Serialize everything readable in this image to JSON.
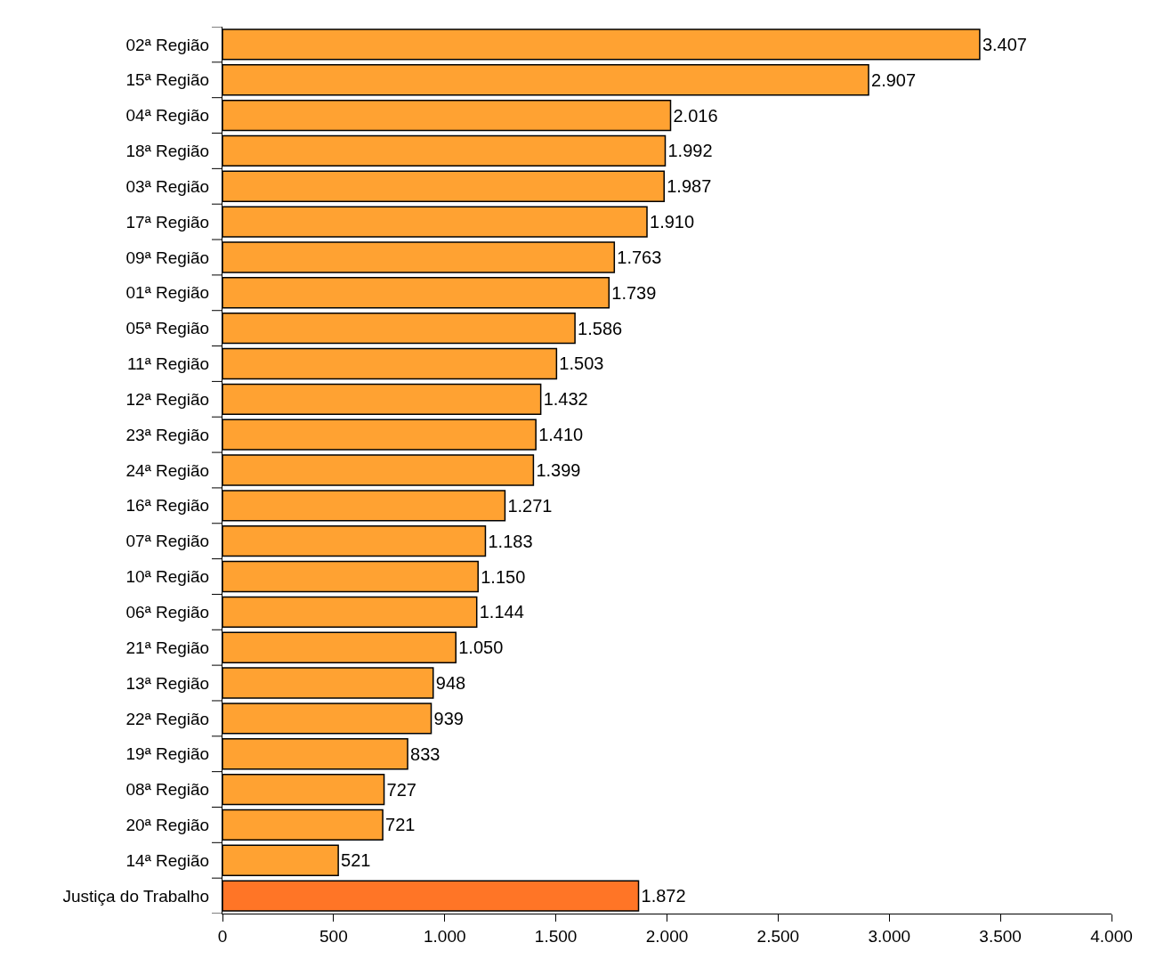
{
  "chart_data": {
    "type": "bar",
    "orientation": "horizontal",
    "categories": [
      "02ª Região",
      "15ª Região",
      "04ª Região",
      "18ª Região",
      "03ª Região",
      "17ª Região",
      "09ª Região",
      "01ª Região",
      "05ª Região",
      "11ª Região",
      "12ª Região",
      "23ª Região",
      "24ª Região",
      "16ª Região",
      "07ª Região",
      "10ª Região",
      "06ª Região",
      "21ª Região",
      "13ª Região",
      "22ª Região",
      "19ª Região",
      "08ª Região",
      "20ª Região",
      "14ª Região",
      "Justiça do Trabalho"
    ],
    "values": [
      3407,
      2907,
      2016,
      1992,
      1987,
      1910,
      1763,
      1739,
      1586,
      1503,
      1432,
      1410,
      1399,
      1271,
      1183,
      1150,
      1144,
      1050,
      948,
      939,
      833,
      727,
      721,
      521,
      1872
    ],
    "value_labels": [
      "3.407",
      "2.907",
      "2.016",
      "1.992",
      "1.987",
      "1.910",
      "1.763",
      "1.739",
      "1.586",
      "1.503",
      "1.432",
      "1.410",
      "1.399",
      "1.271",
      "1.183",
      "1.150",
      "1.144",
      "1.050",
      "948",
      "939",
      "833",
      "727",
      "721",
      "521",
      "1.872"
    ],
    "colors": [
      "#ffa232",
      "#ffa232",
      "#ffa232",
      "#ffa232",
      "#ffa232",
      "#ffa232",
      "#ffa232",
      "#ffa232",
      "#ffa232",
      "#ffa232",
      "#ffa232",
      "#ffa232",
      "#ffa232",
      "#ffa232",
      "#ffa232",
      "#ffa232",
      "#ffa232",
      "#ffa232",
      "#ffa232",
      "#ffa232",
      "#ffa232",
      "#ffa232",
      "#ffa232",
      "#ffa232",
      "#ff7526"
    ],
    "xlim": [
      0,
      4000
    ],
    "xticks": [
      0,
      500,
      {
        "value": 1000,
        "label": "1.000"
      },
      {
        "value": 1500,
        "label": "1.500"
      },
      {
        "value": 2000,
        "label": "2.000"
      },
      {
        "value": 2500,
        "label": "2.500"
      },
      {
        "value": 3000,
        "label": "3.000"
      },
      {
        "value": 3500,
        "label": "3.500"
      },
      {
        "value": 4000,
        "label": "4.000"
      }
    ],
    "legend": false
  }
}
